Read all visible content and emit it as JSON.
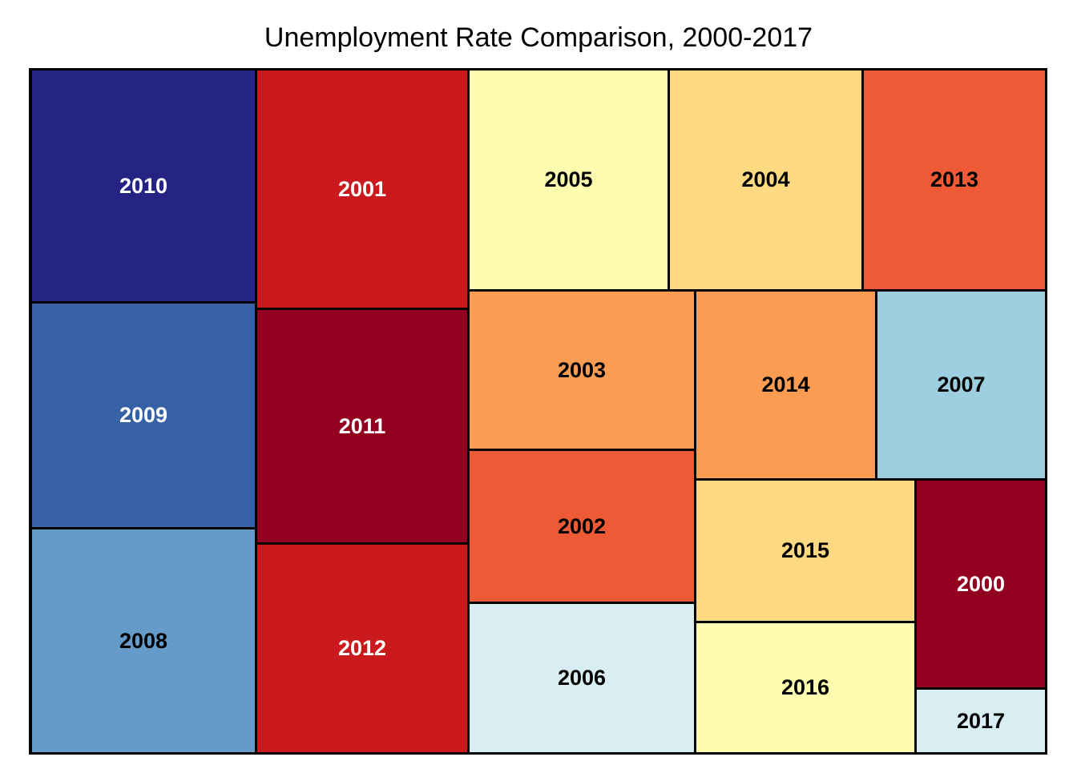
{
  "chart_data": {
    "type": "treemap",
    "title": "Unemployment Rate Comparison, 2000-2017",
    "items": [
      {
        "label": "2010",
        "color": "#252383",
        "text_color": "#ffffff"
      },
      {
        "label": "2009",
        "color": "#3661a5",
        "text_color": "#ffffff"
      },
      {
        "label": "2008",
        "color": "#649bc8",
        "text_color": "#000000"
      },
      {
        "label": "2001",
        "color": "#cb1a1e",
        "text_color": "#ffffff"
      },
      {
        "label": "2011",
        "color": "#93001f",
        "text_color": "#ffffff"
      },
      {
        "label": "2012",
        "color": "#cb1a1e",
        "text_color": "#ffffff"
      },
      {
        "label": "2005",
        "color": "#fefdaf",
        "text_color": "#000000"
      },
      {
        "label": "2004",
        "color": "#fdd981",
        "text_color": "#000000"
      },
      {
        "label": "2013",
        "color": "#ee5a35",
        "text_color": "#000000"
      },
      {
        "label": "2003",
        "color": "#fa9d52",
        "text_color": "#000000"
      },
      {
        "label": "2002",
        "color": "#ee5a35",
        "text_color": "#000000"
      },
      {
        "label": "2006",
        "color": "#d9eef3",
        "text_color": "#000000"
      },
      {
        "label": "2014",
        "color": "#fa9d52",
        "text_color": "#000000"
      },
      {
        "label": "2007",
        "color": "#9dcfe0",
        "text_color": "#000000"
      },
      {
        "label": "2015",
        "color": "#fdd981",
        "text_color": "#000000"
      },
      {
        "label": "2016",
        "color": "#fefdaf",
        "text_color": "#000000"
      },
      {
        "label": "2000",
        "color": "#93001f",
        "text_color": "#ffffff"
      },
      {
        "label": "2017",
        "color": "#d9eef3",
        "text_color": "#000000"
      }
    ]
  }
}
